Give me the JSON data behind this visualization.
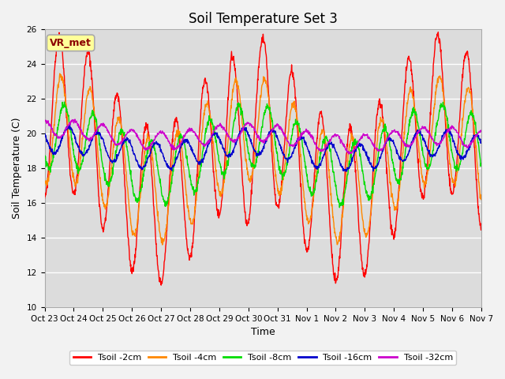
{
  "title": "Soil Temperature Set 3",
  "xlabel": "Time",
  "ylabel": "Soil Temperature (C)",
  "ylim": [
    10,
    26
  ],
  "yticks": [
    10,
    12,
    14,
    16,
    18,
    20,
    22,
    24,
    26
  ],
  "plot_bg_color": "#dcdcdc",
  "fig_bg_color": "#f2f2f2",
  "annotation_text": "VR_met",
  "annotation_text_color": "#8b0000",
  "annotation_bg_color": "#ffff99",
  "annotation_edge_color": "#aaaaaa",
  "series_colors": [
    "#ff0000",
    "#ff8800",
    "#00dd00",
    "#0000cc",
    "#cc00cc"
  ],
  "series_labels": [
    "Tsoil -2cm",
    "Tsoil -4cm",
    "Tsoil -8cm",
    "Tsoil -16cm",
    "Tsoil -32cm"
  ],
  "xtick_labels": [
    "Oct 23",
    "Oct 24",
    "Oct 25",
    "Oct 26",
    "Oct 27",
    "Oct 28",
    "Oct 29",
    "Oct 30",
    "Oct 31",
    "Nov 1",
    "Nov 2",
    "Nov 3",
    "Nov 4",
    "Nov 5",
    "Nov 6",
    "Nov 7"
  ],
  "n_days": 15,
  "pts_per_day": 96,
  "amplitudes": [
    4.5,
    3.0,
    1.8,
    0.75,
    0.5
  ],
  "base_means": [
    18.5,
    18.5,
    18.8,
    19.2,
    20.0
  ],
  "phase_lags_hours": [
    0,
    1.5,
    4,
    8,
    12
  ],
  "trend_per_day": [
    0.0,
    0.0,
    0.0,
    -0.015,
    -0.03
  ],
  "noise_std": [
    0.12,
    0.1,
    0.1,
    0.06,
    0.05
  ],
  "title_fontsize": 12,
  "axis_label_fontsize": 9,
  "tick_fontsize": 7.5,
  "legend_fontsize": 8,
  "linewidth": 1.0,
  "grid_color": "#ffffff",
  "grid_linewidth": 1.0
}
